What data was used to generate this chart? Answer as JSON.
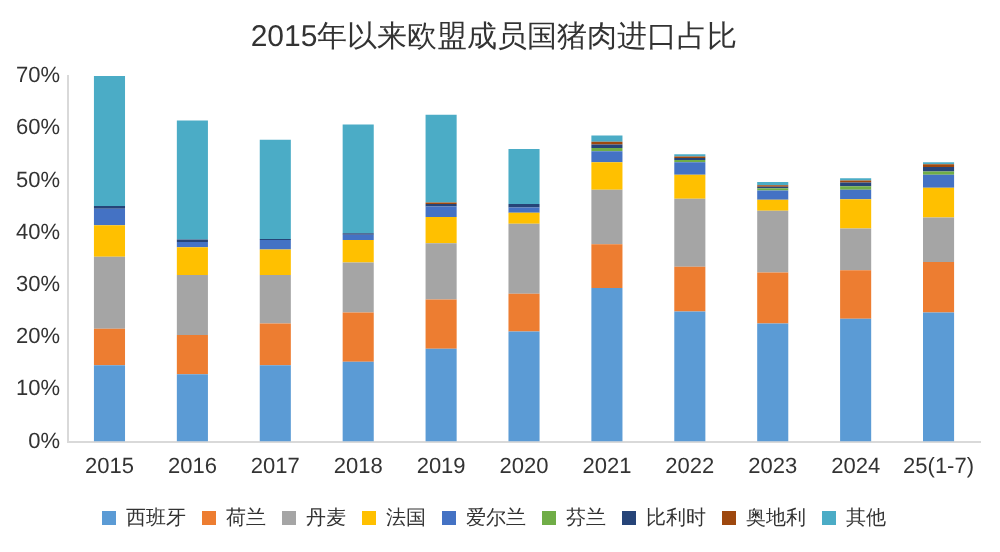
{
  "chart_data": {
    "type": "bar",
    "stacked": true,
    "title": "2015年以来欧盟成员国猪肉进口占比",
    "categories": [
      "2015",
      "2016",
      "2017",
      "2018",
      "2019",
      "2020",
      "2021",
      "2022",
      "2023",
      "2024",
      "25(1-7)"
    ],
    "series": [
      {
        "name": "西班牙",
        "color": "#5b9bd5",
        "values": [
          14.6,
          12.9,
          14.6,
          15.3,
          17.8,
          21.1,
          29.4,
          24.9,
          22.6,
          23.5,
          24.7
        ]
      },
      {
        "name": "荷兰",
        "color": "#ed7d31",
        "values": [
          7.0,
          7.5,
          8.0,
          9.4,
          9.4,
          7.2,
          8.4,
          8.6,
          9.8,
          9.3,
          9.7
        ]
      },
      {
        "name": "丹麦",
        "color": "#a5a5a5",
        "values": [
          13.8,
          11.5,
          9.3,
          9.6,
          10.8,
          13.4,
          10.4,
          13.0,
          11.8,
          8.0,
          8.5
        ]
      },
      {
        "name": "法国",
        "color": "#ffc000",
        "values": [
          6.0,
          5.3,
          4.9,
          4.3,
          5.0,
          2.1,
          5.3,
          4.6,
          2.1,
          5.6,
          5.7
        ]
      },
      {
        "name": "爱尔兰",
        "color": "#4472c4",
        "values": [
          3.2,
          1.0,
          1.8,
          1.0,
          2.0,
          1.0,
          2.1,
          2.4,
          1.8,
          1.8,
          2.5
        ]
      },
      {
        "name": "芬兰",
        "color": "#70ad47",
        "values": [
          0,
          0,
          0,
          0,
          0,
          0,
          0.6,
          0.4,
          0.4,
          0.7,
          0.6
        ]
      },
      {
        "name": "比利时",
        "color": "#264478",
        "values": [
          0.5,
          0.5,
          0.2,
          0.3,
          0.5,
          0.7,
          0.7,
          0.4,
          0.3,
          0.7,
          0.9
        ]
      },
      {
        "name": "奥地利",
        "color": "#9e480e",
        "values": [
          0,
          0,
          0,
          0,
          0.3,
          0,
          0.5,
          0.3,
          0.3,
          0.4,
          0.5
        ]
      },
      {
        "name": "其他",
        "color": "#4bacc6",
        "values": [
          24.9,
          22.8,
          19.0,
          20.8,
          16.8,
          10.5,
          1.2,
          0.4,
          0.6,
          0.4,
          0.4
        ]
      }
    ],
    "ylim": [
      0,
      70
    ],
    "yticks": [
      {
        "value": 0,
        "label": "0%"
      },
      {
        "value": 10,
        "label": "10%"
      },
      {
        "value": 20,
        "label": "20%"
      },
      {
        "value": 30,
        "label": "30%"
      },
      {
        "value": 40,
        "label": "40%"
      },
      {
        "value": 50,
        "label": "50%"
      },
      {
        "value": 60,
        "label": "60%"
      },
      {
        "value": 70,
        "label": "70%"
      }
    ],
    "legend": "bottom"
  }
}
